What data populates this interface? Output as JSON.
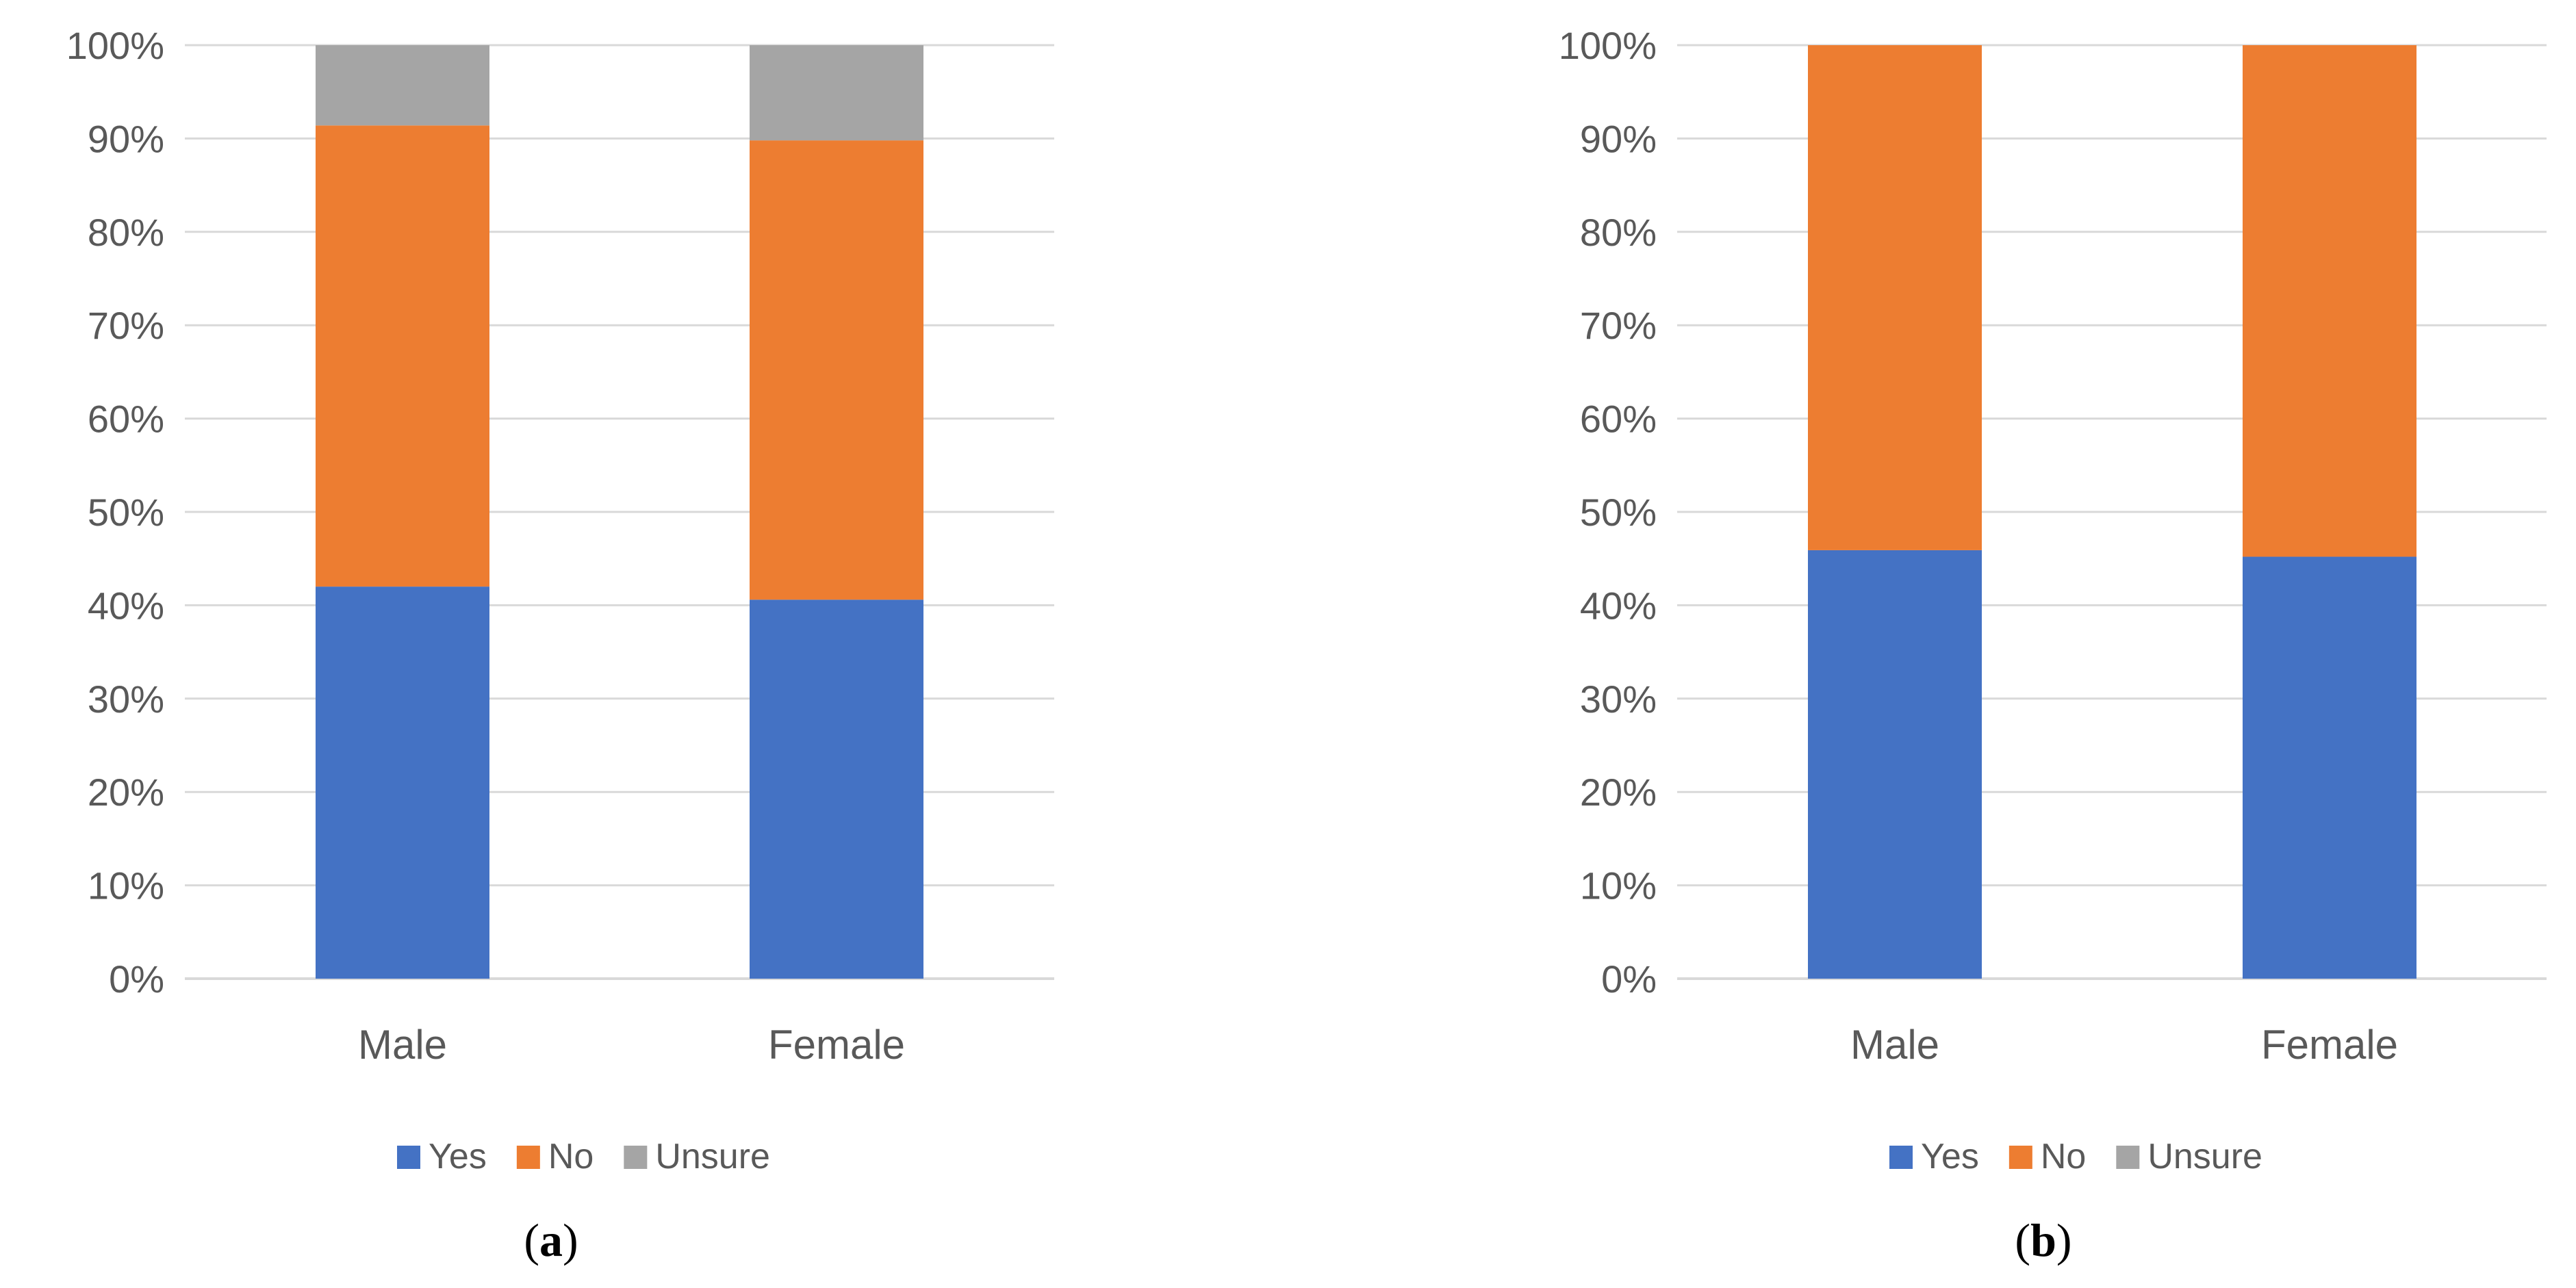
{
  "chart_data": [
    {
      "type": "bar",
      "stacked": "percent",
      "panel_label": "a",
      "categories": [
        "Male",
        "Female"
      ],
      "series": [
        {
          "name": "Yes",
          "color": "#4472C4",
          "values": [
            42.0,
            40.6
          ]
        },
        {
          "name": "No",
          "color": "#ED7D31",
          "values": [
            49.4,
            49.2
          ]
        },
        {
          "name": "Unsure",
          "color": "#A5A5A5",
          "values": [
            8.6,
            10.2
          ]
        }
      ],
      "ylim": [
        0,
        100
      ],
      "yticks": [
        "0%",
        "10%",
        "20%",
        "30%",
        "40%",
        "50%",
        "60%",
        "70%",
        "80%",
        "90%",
        "100%"
      ],
      "grid": true,
      "legend_position": "bottom"
    },
    {
      "type": "bar",
      "stacked": "percent",
      "panel_label": "b",
      "categories": [
        "Male",
        "Female"
      ],
      "series": [
        {
          "name": "Yes",
          "color": "#4472C4",
          "values": [
            45.9,
            45.2
          ]
        },
        {
          "name": "No",
          "color": "#ED7D31",
          "values": [
            54.1,
            54.8
          ]
        },
        {
          "name": "Unsure",
          "color": "#A5A5A5",
          "values": [
            0,
            0
          ]
        }
      ],
      "ylim": [
        0,
        100
      ],
      "yticks": [
        "0%",
        "10%",
        "20%",
        "30%",
        "40%",
        "50%",
        "60%",
        "70%",
        "80%",
        "90%",
        "100%"
      ],
      "grid": true,
      "legend_position": "bottom"
    }
  ],
  "colors": {
    "grid": "#D9D9D9",
    "tick_text": "#595959"
  }
}
